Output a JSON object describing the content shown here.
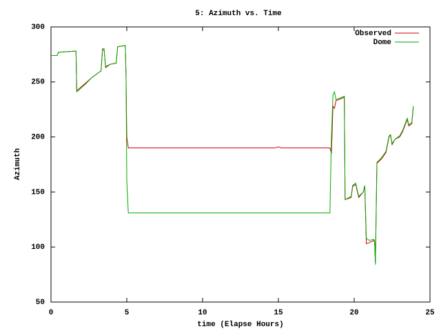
{
  "chart_data": {
    "type": "line",
    "title": "5: Azimuth vs. Time",
    "x_label": "time (Elapse Hours)",
    "y_label": "Azimuth",
    "x": [
      0,
      0.4,
      0.5,
      1.6,
      1.65,
      1.7,
      2.2,
      2.7,
      3.1,
      3.3,
      3.4,
      3.5,
      3.6,
      3.9,
      4.3,
      4.4,
      4.9,
      4.95,
      5.0,
      5.1,
      14.8,
      15.0,
      15.2,
      18.4,
      18.5,
      18.6,
      18.7,
      18.8,
      19.0,
      19.35,
      19.4,
      19.8,
      19.9,
      20.1,
      20.3,
      20.6,
      20.7,
      20.8,
      21.0,
      21.3,
      21.35,
      21.4,
      21.5,
      21.8,
      22.1,
      22.3,
      22.4,
      22.5,
      22.7,
      23.0,
      23.2,
      23.5,
      23.6,
      23.8,
      23.9
    ],
    "series": [
      {
        "name": "Observed",
        "color": "#cc0000",
        "values": [
          274,
          274,
          277,
          278,
          278,
          242,
          248,
          254,
          258,
          260,
          280,
          280,
          263,
          266,
          267,
          282,
          283,
          256,
          200,
          190,
          190,
          191,
          190,
          190,
          185,
          228,
          226,
          233,
          234,
          236,
          143,
          145,
          155,
          157,
          145,
          150,
          155,
          103,
          104,
          106,
          104,
          86,
          176,
          180,
          186,
          200,
          202,
          193,
          198,
          200,
          205,
          216,
          210,
          212,
          227
        ]
      },
      {
        "name": "Dome",
        "color": "#00aa00",
        "values": [
          274,
          274,
          277,
          278,
          278,
          241,
          247,
          254,
          258,
          260,
          279,
          280,
          264,
          266,
          267,
          282,
          283,
          257,
          160,
          131,
          131,
          131,
          131,
          131,
          200,
          238,
          241,
          234,
          235,
          237,
          143,
          146,
          156,
          158,
          146,
          150,
          156,
          108,
          106,
          107,
          105,
          84,
          177,
          181,
          187,
          201,
          202,
          194,
          198,
          201,
          206,
          217,
          211,
          213,
          228
        ]
      }
    ],
    "xlim": [
      0,
      25
    ],
    "xticks": [
      0,
      5,
      10,
      15,
      20,
      25
    ],
    "ylim": [
      50,
      300
    ],
    "yticks": [
      50,
      100,
      150,
      200,
      250,
      300
    ],
    "legend": "top-right"
  }
}
